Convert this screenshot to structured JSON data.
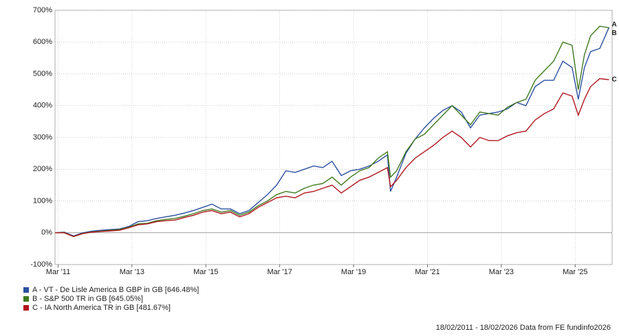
{
  "chart_data": {
    "type": "line",
    "x": [
      "2011-02",
      "2011-05",
      "2011-08",
      "2011-11",
      "2012-02",
      "2012-05",
      "2012-08",
      "2012-11",
      "2013-02",
      "2013-05",
      "2013-08",
      "2013-11",
      "2014-02",
      "2014-05",
      "2014-08",
      "2014-11",
      "2015-02",
      "2015-05",
      "2015-08",
      "2015-11",
      "2016-02",
      "2016-05",
      "2016-08",
      "2016-11",
      "2017-02",
      "2017-05",
      "2017-08",
      "2017-11",
      "2018-02",
      "2018-05",
      "2018-08",
      "2018-11",
      "2019-02",
      "2019-05",
      "2019-08",
      "2019-11",
      "2020-02",
      "2020-03",
      "2020-05",
      "2020-08",
      "2020-11",
      "2021-02",
      "2021-05",
      "2021-08",
      "2021-11",
      "2022-02",
      "2022-05",
      "2022-08",
      "2022-11",
      "2023-02",
      "2023-05",
      "2023-08",
      "2023-11",
      "2024-02",
      "2024-05",
      "2024-08",
      "2024-11",
      "2025-02",
      "2025-04",
      "2025-06",
      "2025-08",
      "2025-11",
      "2026-02"
    ],
    "series": [
      {
        "name": "A - VT - De Lisle America B GBP in GB [646.48%]",
        "label": "A",
        "color": "#2a4fa0",
        "values": [
          0,
          2,
          -10,
          0,
          5,
          8,
          10,
          12,
          20,
          35,
          38,
          45,
          50,
          55,
          62,
          70,
          80,
          90,
          75,
          75,
          60,
          70,
          95,
          120,
          150,
          195,
          190,
          200,
          210,
          205,
          225,
          180,
          195,
          200,
          210,
          225,
          245,
          130,
          175,
          250,
          295,
          330,
          360,
          385,
          400,
          380,
          330,
          370,
          375,
          380,
          390,
          410,
          400,
          460,
          480,
          480,
          540,
          520,
          420,
          520,
          570,
          580,
          646.48
        ]
      },
      {
        "name": "B - S&P 500 TR in GB [645.05%]",
        "label": "B",
        "color": "#3f7a1e",
        "values": [
          0,
          1,
          -12,
          -2,
          3,
          5,
          8,
          10,
          18,
          28,
          30,
          38,
          42,
          45,
          52,
          60,
          70,
          75,
          65,
          70,
          55,
          65,
          85,
          100,
          120,
          130,
          125,
          140,
          150,
          155,
          175,
          150,
          175,
          195,
          205,
          235,
          255,
          175,
          195,
          255,
          295,
          310,
          340,
          370,
          400,
          370,
          340,
          380,
          375,
          370,
          395,
          410,
          420,
          480,
          510,
          540,
          600,
          590,
          450,
          560,
          620,
          650,
          645.05
        ]
      },
      {
        "name": "C - IA North America TR in GB [481.67%]",
        "label": "C",
        "color": "#b0141a",
        "values": [
          0,
          0,
          -12,
          -3,
          2,
          4,
          6,
          8,
          16,
          25,
          28,
          35,
          38,
          40,
          48,
          55,
          65,
          70,
          60,
          65,
          50,
          60,
          80,
          95,
          110,
          115,
          110,
          125,
          130,
          140,
          150,
          125,
          145,
          165,
          175,
          190,
          205,
          145,
          165,
          205,
          235,
          255,
          275,
          300,
          320,
          300,
          270,
          300,
          290,
          290,
          305,
          315,
          320,
          355,
          375,
          390,
          440,
          430,
          370,
          420,
          460,
          485,
          481.67
        ]
      }
    ],
    "xlim": [
      "2011-02",
      "2026-03"
    ],
    "xticks": [
      {
        "value": "2011-03",
        "label": "Mar '11"
      },
      {
        "value": "2013-03",
        "label": "Mar '13"
      },
      {
        "value": "2015-03",
        "label": "Mar '15"
      },
      {
        "value": "2017-03",
        "label": "Mar '17"
      },
      {
        "value": "2019-03",
        "label": "Mar '19"
      },
      {
        "value": "2021-03",
        "label": "Mar '21"
      },
      {
        "value": "2023-03",
        "label": "Mar '23"
      },
      {
        "value": "2025-03",
        "label": "Mar '25"
      }
    ],
    "ylim": [
      -100,
      700
    ],
    "yticks": [
      {
        "value": -100,
        "label": "-100%"
      },
      {
        "value": 0,
        "label": "0%"
      },
      {
        "value": 100,
        "label": "100%"
      },
      {
        "value": 200,
        "label": "200%"
      },
      {
        "value": 300,
        "label": "300%"
      },
      {
        "value": 400,
        "label": "400%"
      },
      {
        "value": 500,
        "label": "500%"
      },
      {
        "value": 600,
        "label": "600%"
      },
      {
        "value": 700,
        "label": "700%"
      }
    ],
    "grid": true,
    "footnote": "18/02/2011 - 18/02/2026 Data from FE fundinfo2026"
  }
}
